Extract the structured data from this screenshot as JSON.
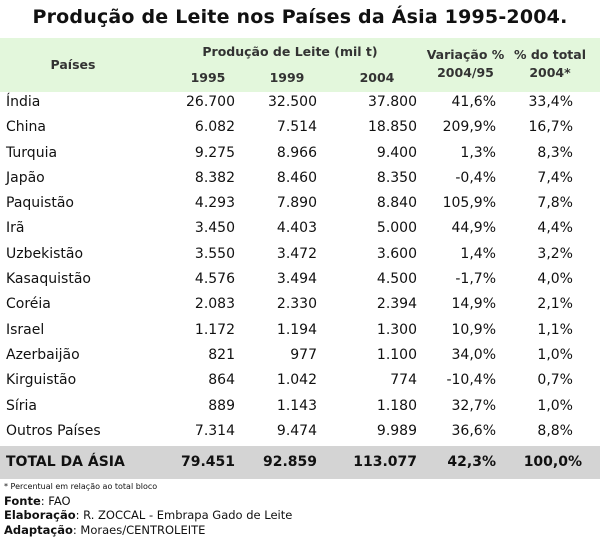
{
  "title": "Produção de Leite nos Países da Ásia 1995-2004.",
  "header": {
    "paises": "Países",
    "producao": "Produção de Leite (mil t)",
    "years": [
      "1995",
      "1999",
      "2004"
    ],
    "variacao_1": "Variação %",
    "variacao_2": "2004/95",
    "pct_total_1": "% do total",
    "pct_total_2": "2004*"
  },
  "rows": [
    {
      "pais": "Índia",
      "y1995": "26.700",
      "y1999": "32.500",
      "y2004": "37.800",
      "variacao": "41,6%",
      "pct": "33,4%"
    },
    {
      "pais": "China",
      "y1995": "6.082",
      "y1999": "7.514",
      "y2004": "18.850",
      "variacao": "209,9%",
      "pct": "16,7%"
    },
    {
      "pais": "Turquia",
      "y1995": "9.275",
      "y1999": "8.966",
      "y2004": "9.400",
      "variacao": "1,3%",
      "pct": "8,3%"
    },
    {
      "pais": "Japão",
      "y1995": "8.382",
      "y1999": "8.460",
      "y2004": "8.350",
      "variacao": "-0,4%",
      "pct": "7,4%"
    },
    {
      "pais": "Paquistão",
      "y1995": "4.293",
      "y1999": "7.890",
      "y2004": "8.840",
      "variacao": "105,9%",
      "pct": "7,8%"
    },
    {
      "pais": "Irã",
      "y1995": "3.450",
      "y1999": "4.403",
      "y2004": "5.000",
      "variacao": "44,9%",
      "pct": "4,4%"
    },
    {
      "pais": "Uzbekistão",
      "y1995": "3.550",
      "y1999": "3.472",
      "y2004": "3.600",
      "variacao": "1,4%",
      "pct": "3,2%"
    },
    {
      "pais": "Kasaquistão",
      "y1995": "4.576",
      "y1999": "3.494",
      "y2004": "4.500",
      "variacao": "-1,7%",
      "pct": "4,0%"
    },
    {
      "pais": "Coréia",
      "y1995": "2.083",
      "y1999": "2.330",
      "y2004": "2.394",
      "variacao": "14,9%",
      "pct": "2,1%"
    },
    {
      "pais": "Israel",
      "y1995": "1.172",
      "y1999": "1.194",
      "y2004": "1.300",
      "variacao": "10,9%",
      "pct": "1,1%"
    },
    {
      "pais": "Azerbaijão",
      "y1995": "821",
      "y1999": "977",
      "y2004": "1.100",
      "variacao": "34,0%",
      "pct": "1,0%"
    },
    {
      "pais": "Kirguistão",
      "y1995": "864",
      "y1999": "1.042",
      "y2004": "774",
      "variacao": "-10,4%",
      "pct": "0,7%"
    },
    {
      "pais": "Síria",
      "y1995": "889",
      "y1999": "1.143",
      "y2004": "1.180",
      "variacao": "32,7%",
      "pct": "1,0%"
    },
    {
      "pais": "Outros Países",
      "y1995": "7.314",
      "y1999": "9.474",
      "y2004": "9.989",
      "variacao": "36,6%",
      "pct": "8,8%"
    }
  ],
  "total": {
    "label": "TOTAL DA ÁSIA",
    "y1995": "79.451",
    "y1999": "92.859",
    "y2004": "113.077",
    "variacao": "42,3%",
    "pct": "100,0%"
  },
  "footer": {
    "note": "* Percentual em relação ao total bloco",
    "fonte_label": "Fonte",
    "fonte_value": ": FAO",
    "elaboracao_label": "Elaboração",
    "elaboracao_value": ": R. ZOCCAL - Embrapa Gado de Leite",
    "adaptacao_label": "Adaptação",
    "adaptacao_value": ": Moraes/CENTROLEITE"
  },
  "colors": {
    "header_bg": "#e3f7dc",
    "total_bg": "#d4d4d4"
  }
}
